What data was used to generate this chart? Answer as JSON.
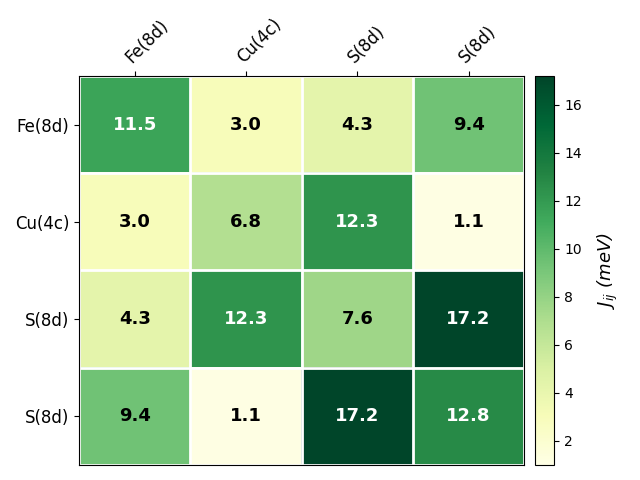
{
  "labels": [
    "Fe(8d)",
    "Cu(4c)",
    "S(8d)",
    "S(8d)"
  ],
  "matrix": [
    [
      11.5,
      3.0,
      4.3,
      9.4
    ],
    [
      3.0,
      6.8,
      12.3,
      1.1
    ],
    [
      4.3,
      12.3,
      7.6,
      17.2
    ],
    [
      9.4,
      1.1,
      17.2,
      12.8
    ]
  ],
  "colorbar_label": "$J_{ij}$ (meV)",
  "cmap": "YlGn",
  "vmin": 1,
  "vmax": 17.2,
  "figsize": [
    6.4,
    4.8
  ],
  "dpi": 100,
  "text_threshold": 0.55,
  "text_color_dark": "black",
  "text_color_light": "white",
  "fontsize_cell": 13,
  "fontsize_tick": 12,
  "fontsize_cbar": 13,
  "cbar_ticks": [
    2,
    4,
    6,
    8,
    10,
    12,
    14,
    16
  ]
}
